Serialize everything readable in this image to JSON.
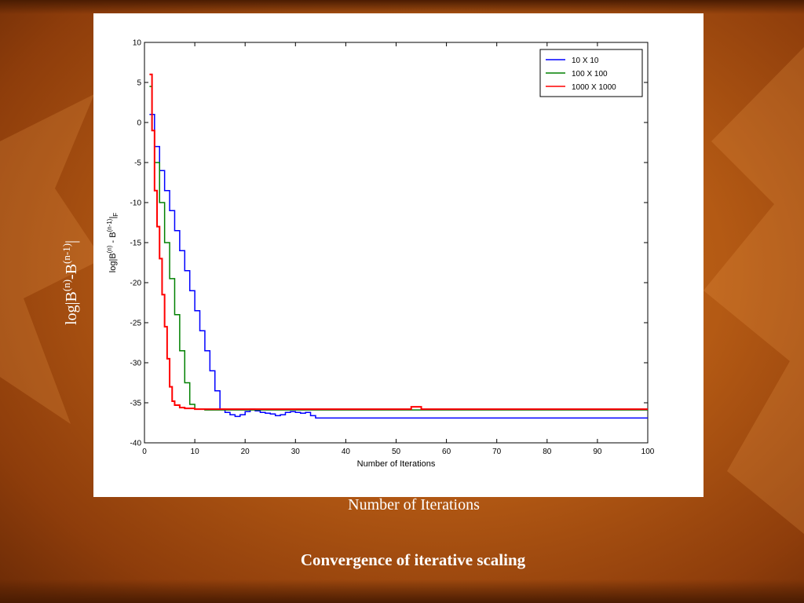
{
  "slide": {
    "ylabel_parts": [
      "log|B",
      "(n)",
      "-B",
      "(n-1)",
      "|"
    ],
    "xlabel": "Number of Iterations",
    "caption": "Convergence of iterative scaling"
  },
  "colors": {
    "series_1": "#0000ff",
    "series_2": "#008000",
    "series_3": "#ff0000",
    "background": "#b45a14",
    "text": "#ffffff"
  },
  "chart_data": {
    "type": "line",
    "title": "",
    "xlabel": "Number of Iterations",
    "ylabel_parts": [
      "log|B",
      "(n)",
      " - B",
      "(n-1)",
      "|",
      "F"
    ],
    "xlim": [
      0,
      100
    ],
    "ylim": [
      -40,
      10
    ],
    "xticks": [
      0,
      10,
      20,
      30,
      40,
      50,
      60,
      70,
      80,
      90,
      100
    ],
    "yticks": [
      10,
      5,
      0,
      -5,
      -10,
      -15,
      -20,
      -25,
      -30,
      -35,
      -40
    ],
    "grid": false,
    "legend_position": "top-right",
    "series": [
      {
        "name": "10 X 10",
        "color": "#0000ff",
        "x": [
          1,
          2,
          3,
          4,
          5,
          6,
          7,
          8,
          9,
          10,
          11,
          12,
          13,
          14,
          15,
          16,
          17,
          18,
          19,
          20,
          21,
          22,
          23,
          24,
          25,
          26,
          27,
          28,
          29,
          30,
          31,
          32,
          33,
          34,
          35,
          40,
          50,
          60,
          70,
          80,
          90,
          100
        ],
        "y": [
          1,
          -3,
          -6,
          -8.5,
          -11,
          -13.5,
          -16,
          -18.5,
          -21,
          -23.5,
          -26,
          -28.5,
          -31,
          -33.5,
          -35.8,
          -36.2,
          -36.5,
          -36.7,
          -36.5,
          -36.1,
          -35.8,
          -36.0,
          -36.2,
          -36.3,
          -36.4,
          -36.6,
          -36.5,
          -36.2,
          -36.1,
          -36.2,
          -36.3,
          -36.2,
          -36.6,
          -36.9,
          -36.9,
          -36.9,
          -36.9,
          -36.9,
          -36.9,
          -36.9,
          -36.9,
          -36.9
        ]
      },
      {
        "name": "100 X 100",
        "color": "#008000",
        "x": [
          1,
          1.5,
          2,
          3,
          4,
          5,
          6,
          7,
          8,
          9,
          10,
          12,
          15,
          20,
          30,
          40,
          50,
          60,
          70,
          80,
          90,
          100
        ],
        "y": [
          4.5,
          -1,
          -5,
          -10,
          -15,
          -19.5,
          -24,
          -28.5,
          -32.5,
          -35.2,
          -35.8,
          -35.9,
          -35.9,
          -35.9,
          -35.9,
          -35.9,
          -35.9,
          -35.9,
          -35.9,
          -35.9,
          -35.9,
          -35.9
        ]
      },
      {
        "name": "1000 X 1000",
        "color": "#ff0000",
        "x": [
          1,
          1.5,
          2,
          2.5,
          3,
          3.5,
          4,
          4.5,
          5,
          5.5,
          6,
          7,
          8,
          10,
          15,
          20,
          30,
          40,
          50,
          53,
          54,
          55,
          60,
          70,
          80,
          90,
          100
        ],
        "y": [
          6,
          -1,
          -8.5,
          -13,
          -17,
          -21.5,
          -25.5,
          -29.5,
          -33,
          -34.8,
          -35.3,
          -35.6,
          -35.7,
          -35.8,
          -35.8,
          -35.8,
          -35.8,
          -35.8,
          -35.8,
          -35.5,
          -35.5,
          -35.8,
          -35.8,
          -35.8,
          -35.8,
          -35.8,
          -35.8
        ]
      }
    ]
  }
}
